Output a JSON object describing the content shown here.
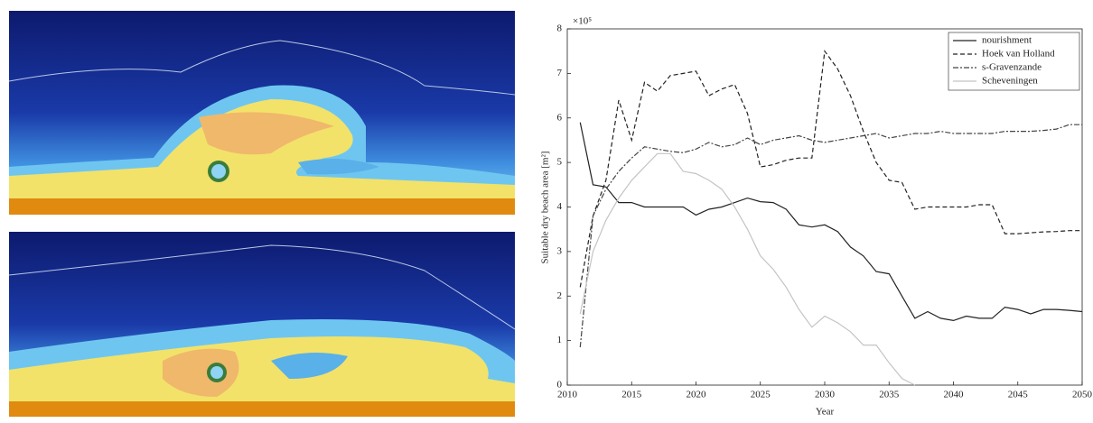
{
  "chart_data": {
    "type": "line",
    "y_multiplier": "×10⁵",
    "xlabel": "Year",
    "ylabel": "Suitable dry beach area [m²]",
    "xlim": [
      2010,
      2050
    ],
    "xticks": [
      2010,
      2015,
      2020,
      2025,
      2030,
      2035,
      2040,
      2045,
      2050
    ],
    "ylim": [
      0,
      8
    ],
    "yticks": [
      0,
      1,
      2,
      3,
      4,
      5,
      6,
      7,
      8
    ],
    "grid": false,
    "legend": "upper-right",
    "x": [
      2011,
      2012,
      2013,
      2014,
      2015,
      2016,
      2017,
      2018,
      2019,
      2020,
      2021,
      2022,
      2023,
      2024,
      2025,
      2026,
      2027,
      2028,
      2029,
      2030,
      2031,
      2032,
      2033,
      2034,
      2035,
      2036,
      2037,
      2038,
      2039,
      2040,
      2041,
      2042,
      2043,
      2044,
      2045,
      2046,
      2047,
      2048,
      2049,
      2050
    ],
    "series": [
      {
        "name": "nourishment",
        "color": "#222222",
        "dash": "none",
        "values": [
          5.9,
          4.5,
          4.45,
          4.1,
          4.1,
          4.0,
          4.0,
          4.0,
          4.0,
          3.82,
          3.95,
          4.0,
          4.1,
          4.2,
          4.12,
          4.1,
          3.95,
          3.6,
          3.55,
          3.6,
          3.45,
          3.1,
          2.9,
          2.55,
          2.5,
          2.0,
          1.5,
          1.65,
          1.5,
          1.45,
          1.55,
          1.5,
          1.5,
          1.75,
          1.7,
          1.6,
          1.7,
          1.7,
          1.68,
          1.65
        ]
      },
      {
        "name": "Hoek van Holland",
        "color": "#222222",
        "dash": "5,3",
        "values": [
          2.2,
          3.8,
          4.6,
          6.4,
          5.5,
          6.8,
          6.6,
          6.95,
          7.0,
          7.05,
          6.5,
          6.65,
          6.75,
          6.1,
          4.9,
          4.95,
          5.05,
          5.1,
          5.1,
          7.5,
          7.1,
          6.5,
          5.7,
          5.0,
          4.6,
          4.55,
          3.95,
          4.0,
          4.0,
          4.0,
          4.0,
          4.05,
          4.05,
          3.4,
          3.4,
          3.42,
          3.44,
          3.45,
          3.47,
          3.47
        ]
      },
      {
        "name": "s-Gravenzande",
        "color": "#444444",
        "dash": "6,2,2,2",
        "values": [
          0.85,
          3.8,
          4.4,
          4.8,
          5.1,
          5.35,
          5.3,
          5.25,
          5.22,
          5.3,
          5.45,
          5.35,
          5.4,
          5.55,
          5.4,
          5.5,
          5.55,
          5.6,
          5.5,
          5.45,
          5.5,
          5.55,
          5.6,
          5.65,
          5.55,
          5.6,
          5.65,
          5.65,
          5.7,
          5.65,
          5.65,
          5.65,
          5.65,
          5.7,
          5.7,
          5.7,
          5.72,
          5.75,
          5.85,
          5.85
        ]
      },
      {
        "name": "Scheveningen",
        "color": "#c4c4c4",
        "dash": "none",
        "values": [
          1.6,
          3.0,
          3.7,
          4.2,
          4.6,
          4.9,
          5.2,
          5.2,
          4.8,
          4.75,
          4.6,
          4.4,
          4.0,
          3.5,
          2.9,
          2.6,
          2.2,
          1.7,
          1.3,
          1.55,
          1.4,
          1.2,
          0.9,
          0.9,
          0.5,
          0.15,
          0,
          null,
          null,
          null,
          null,
          null,
          null,
          null,
          null,
          null,
          null,
          null,
          null,
          null
        ]
      }
    ]
  }
}
